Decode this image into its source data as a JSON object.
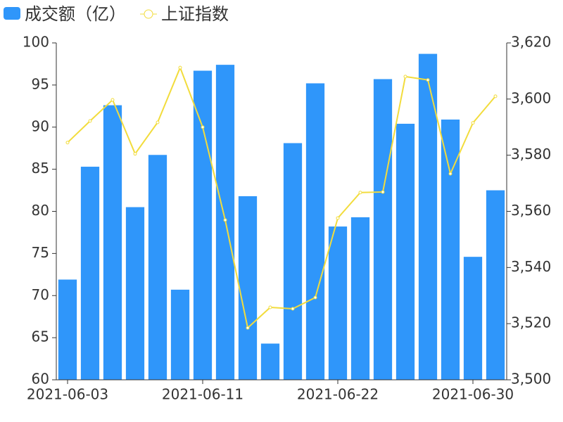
{
  "chart_data": {
    "type": "bar",
    "categories": [
      "2021-06-03",
      null,
      null,
      null,
      null,
      null,
      "2021-06-11",
      null,
      null,
      null,
      null,
      null,
      "2021-06-22",
      null,
      null,
      null,
      null,
      null,
      "2021-06-30",
      null
    ],
    "series": [
      {
        "name": "成交额（亿）",
        "type": "bar",
        "color": "#2f96fa",
        "axis": "y",
        "values": [
          71.9,
          85.3,
          92.6,
          80.5,
          86.7,
          70.7,
          96.7,
          97.4,
          81.8,
          64.3,
          88.1,
          95.2,
          78.2,
          79.3,
          95.7,
          90.4,
          98.7,
          90.9,
          74.6,
          82.5
        ]
      },
      {
        "name": "上证指数",
        "type": "line",
        "color": "#f2dc3c",
        "axis": "y2",
        "values": [
          3584.5,
          3592.2,
          3599.7,
          3580.5,
          3591.7,
          3611.2,
          3590.0,
          3556.9,
          3518.5,
          3525.8,
          3525.3,
          3529.3,
          3557.6,
          3566.7,
          3566.9,
          3608.0,
          3606.8,
          3573.4,
          3591.5,
          3601.0
        ]
      }
    ],
    "ylim": [
      60,
      100
    ],
    "yticks": [
      60,
      65,
      70,
      75,
      80,
      85,
      90,
      95,
      100
    ],
    "y2lim": [
      3500,
      3620
    ],
    "y2ticks": [
      {
        "value": 3500,
        "label": "3,500"
      },
      {
        "value": 3520,
        "label": "3,520"
      },
      {
        "value": 3540,
        "label": "3,540"
      },
      {
        "value": 3560,
        "label": "3,560"
      },
      {
        "value": 3580,
        "label": "3,580"
      },
      {
        "value": 3600,
        "label": "3,600"
      },
      {
        "value": 3620,
        "label": "3,620"
      }
    ],
    "legend": "top-left",
    "grid": false
  }
}
